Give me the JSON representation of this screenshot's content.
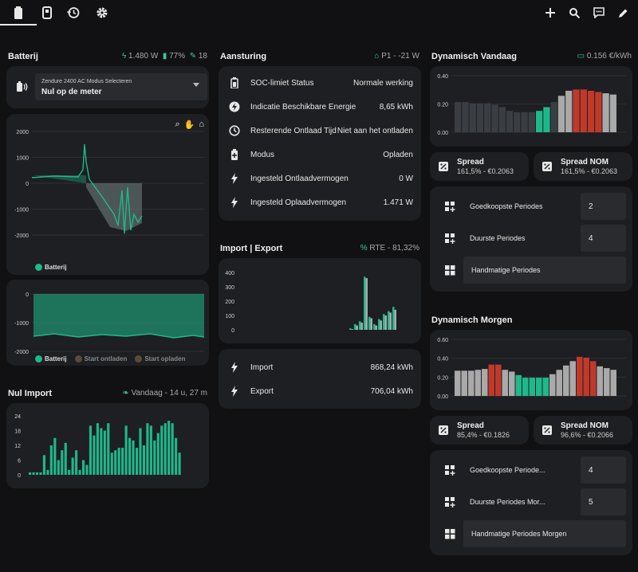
{
  "topbar": {
    "tabs": [
      {
        "name": "tab-battery",
        "icon": "battery-icon",
        "active": true
      },
      {
        "name": "tab-device",
        "icon": "device-icon",
        "active": false
      },
      {
        "name": "tab-history",
        "icon": "history-icon",
        "active": false
      },
      {
        "name": "tab-settings",
        "icon": "gear-icon",
        "active": false
      }
    ],
    "actions": [
      "plus-icon",
      "search-icon",
      "chat-icon",
      "pencil-icon"
    ]
  },
  "batterij": {
    "title": "Batterij",
    "info_power": "1.480 W",
    "info_soc": "77%",
    "info_count": "18",
    "select_label": "Zendure 2400 AC Modus Selecteren",
    "select_value": "Nul op de meter",
    "chart1": {
      "yticks": [
        "2000",
        "1000",
        "0",
        "-1000",
        "-2000"
      ],
      "legend": "Batterij"
    },
    "chart2": {
      "yticks": [
        "0",
        "-1000",
        "-2000"
      ],
      "legend": [
        "Batterij",
        "Start ontladen",
        "Start opladen"
      ]
    }
  },
  "nulimport": {
    "title": "Nul Import",
    "info": "Vandaag - 14 u, 27 m",
    "yticks": [
      "24",
      "18",
      "12",
      "6",
      "0"
    ]
  },
  "aansturing": {
    "title": "Aansturing",
    "info": "P1 - -21 W",
    "rows": [
      {
        "label": "SOC-limiet Status",
        "value": "Normale werking"
      },
      {
        "label": "Indicatie Beschikbare Energie",
        "value": "8,65 kWh"
      },
      {
        "label": "Resterende Ontlaad Tijd",
        "value": "Niet aan het ontladen"
      },
      {
        "label": "Modus",
        "value": "Opladen"
      },
      {
        "label": "Ingesteld Ontlaadvermogen",
        "value": "0 W"
      },
      {
        "label": "Ingesteld Oplaadvermogen",
        "value": "1.471 W"
      }
    ]
  },
  "importexport": {
    "title": "Import | Export",
    "info": "RTE - 81,32%",
    "yticks": [
      "400",
      "300",
      "200",
      "100",
      "0"
    ],
    "rows": [
      {
        "label": "Import",
        "value": "868,24 kWh"
      },
      {
        "label": "Export",
        "value": "706,04 kWh"
      }
    ]
  },
  "vandaag": {
    "title": "Dynamisch Vandaag",
    "info": "0.156 €/kWh",
    "yticks": [
      "0.40",
      "0.20",
      "0.00"
    ],
    "spread_title": "Spread",
    "spread_value": "161,5% - €0.2063",
    "spreadnom_title": "Spread NOM",
    "spreadnom_value": "161,5% - €0.2063",
    "periods": [
      {
        "label": "Goedkoopste Periodes",
        "value": "2"
      },
      {
        "label": "Duurste Periodes",
        "value": "4"
      },
      {
        "label": "Handmatige Periodes"
      }
    ]
  },
  "morgen": {
    "title": "Dynamisch Morgen",
    "yticks": [
      "0.60",
      "0.40",
      "0.20",
      "0.00"
    ],
    "spread_title": "Spread",
    "spread_value": "85,4% - €0.1826",
    "spreadnom_title": "Spread NOM",
    "spreadnom_value": "96,6% - €0.2066",
    "periods": [
      {
        "label": "Goedkoopste Periode...",
        "value": "4"
      },
      {
        "label": "Duurste Periodes Mor...",
        "value": "5"
      },
      {
        "label": "Handmatige Periodes Morgen"
      }
    ]
  },
  "colors": {
    "accent": "#1fb88a",
    "red": "#c0392b",
    "gray": "#a9a9a9",
    "dark": "#3a3d42"
  },
  "chart_data": [
    {
      "type": "bar",
      "title": "Nul Import",
      "values": [
        1,
        1,
        1,
        1,
        8,
        2,
        12,
        15,
        6,
        10,
        13,
        2,
        7,
        10,
        2,
        6,
        4,
        20,
        16,
        21,
        19,
        18,
        21,
        9,
        10,
        11,
        11,
        20,
        15,
        14,
        11,
        19,
        12,
        21,
        20,
        14,
        17,
        20,
        21,
        22,
        21,
        15,
        9
      ],
      "ylim": [
        0,
        24
      ]
    },
    {
      "type": "bar",
      "title": "Import | Export",
      "series": [
        {
          "name": "Import",
          "values": [
            10,
            40,
            60,
            370,
            90,
            40,
            75,
            110,
            130,
            160
          ]
        },
        {
          "name": "Export",
          "values": [
            5,
            30,
            50,
            360,
            80,
            30,
            65,
            100,
            120,
            140
          ]
        }
      ],
      "ylim": [
        0,
        400
      ]
    },
    {
      "type": "bar",
      "title": "Dynamisch Vandaag",
      "values": [
        0.24,
        0.24,
        0.23,
        0.23,
        0.23,
        0.22,
        0.2,
        0.17,
        0.16,
        0.16,
        0.16,
        0.17,
        0.2,
        0.24,
        0.29,
        0.33,
        0.34,
        0.34,
        0.33,
        0.32,
        0.31,
        0.3
      ],
      "colors": [
        "dark",
        "dark",
        "dark",
        "dark",
        "dark",
        "dark",
        "dark",
        "dark",
        "dark",
        "dark",
        "dark",
        "accent",
        "accent",
        "dark",
        "gray",
        "gray",
        "red",
        "red",
        "red",
        "red",
        "gray",
        "gray"
      ],
      "ylim": [
        0,
        0.45
      ]
    },
    {
      "type": "bar",
      "title": "Dynamisch Morgen",
      "values": [
        0.29,
        0.29,
        0.29,
        0.3,
        0.31,
        0.36,
        0.36,
        0.3,
        0.28,
        0.24,
        0.21,
        0.21,
        0.21,
        0.21,
        0.25,
        0.3,
        0.35,
        0.4,
        0.45,
        0.44,
        0.4,
        0.34,
        0.32,
        0.3
      ],
      "colors": [
        "gray",
        "gray",
        "gray",
        "gray",
        "gray",
        "red",
        "red",
        "gray",
        "gray",
        "accent",
        "accent",
        "accent",
        "accent",
        "accent",
        "gray",
        "gray",
        "gray",
        "gray",
        "red",
        "red",
        "red",
        "gray",
        "gray",
        "gray"
      ],
      "ylim": [
        0,
        0.65
      ]
    }
  ]
}
